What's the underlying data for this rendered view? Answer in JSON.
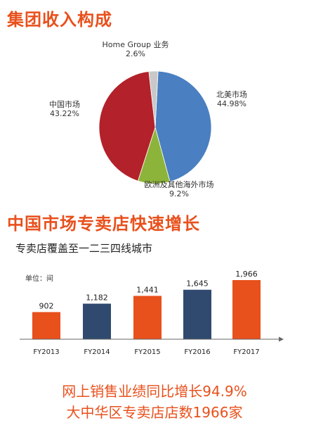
{
  "header": {
    "title": "集团收入构成"
  },
  "section2": {
    "title": "中国市场专卖店快速增长",
    "subtitle": "专卖店覆盖至一二三四线城市"
  },
  "footer": {
    "line1": "网上销售业绩同比增长94.9%",
    "line2": "大中华区专卖店店数1966家"
  },
  "colors": {
    "accent": "#e8501c",
    "pie_north_america": "#4a7fc1",
    "pie_europe": "#8db43a",
    "pie_china": "#b3212b",
    "pie_home_group": "#c8c8c8",
    "bar_orange": "#e8501c",
    "bar_navy": "#2f4a6e"
  },
  "chart_data": [
    {
      "type": "pie",
      "title": "集团收入构成",
      "slices": [
        {
          "name": "北美市场",
          "label": "44.98%",
          "value": 44.98,
          "color": "#4a7fc1"
        },
        {
          "name": "欧洲及其他海外市场",
          "label": "9.2%",
          "value": 9.2,
          "color": "#8db43a"
        },
        {
          "name": "中国市场",
          "label": "43.22%",
          "value": 43.22,
          "color": "#b3212b"
        },
        {
          "name": "Home Group 业务",
          "label": "2.6%",
          "value": 2.6,
          "color": "#c8c8c8"
        }
      ]
    },
    {
      "type": "bar",
      "title": "中国市场专卖店快速增长",
      "unit_label": "单位：间",
      "categories": [
        "FY2013",
        "FY2014",
        "FY2015",
        "FY2016",
        "FY2017"
      ],
      "values": [
        902,
        1182,
        1441,
        1645,
        1966
      ],
      "value_labels": [
        "902",
        "1,182",
        "1,441",
        "1,645",
        "1,966"
      ],
      "colors": [
        "#e8501c",
        "#2f4a6e",
        "#e8501c",
        "#2f4a6e",
        "#e8501c"
      ],
      "ylim": [
        0,
        1966
      ]
    }
  ]
}
